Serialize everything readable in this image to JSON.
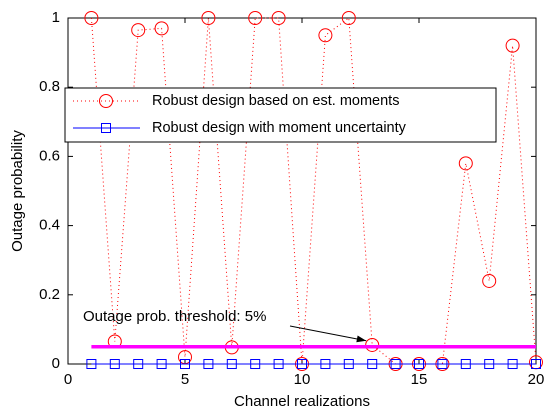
{
  "chart_data": {
    "type": "line",
    "xlabel": "Channel realizations",
    "ylabel": "Outage probability",
    "x": [
      1,
      2,
      3,
      4,
      5,
      6,
      7,
      8,
      9,
      10,
      11,
      12,
      13,
      14,
      15,
      16,
      17,
      18,
      19,
      20
    ],
    "series": [
      {
        "name": "Robust design based on est. moments",
        "color": "#ff0000",
        "line_style": "dotted",
        "marker": "circle",
        "values": [
          1.0,
          0.065,
          0.965,
          0.97,
          0.02,
          1.0,
          0.048,
          1.0,
          1.0,
          0,
          0.95,
          1.0,
          0.055,
          0,
          0,
          0,
          0.58,
          0.24,
          0.92,
          0.005
        ]
      },
      {
        "name": "Robust design with moment uncertainty",
        "color": "#0000ff",
        "line_style": "solid",
        "marker": "square",
        "values": [
          0,
          0,
          0,
          0,
          0,
          0,
          0,
          0,
          0,
          0,
          0,
          0,
          0,
          0,
          0,
          0,
          0,
          0,
          0,
          0
        ]
      }
    ],
    "reference_line": {
      "x": [
        1,
        20
      ],
      "values": [
        0.05,
        0.05
      ],
      "color": "#ff00ff"
    },
    "annotation": {
      "text": "Outage prob. threshold: 5%",
      "x": 13,
      "y": 0.05
    },
    "xlim": [
      0,
      20
    ],
    "xticks": [
      0,
      5,
      10,
      15,
      20
    ],
    "ylim": [
      0,
      1
    ],
    "yticks": [
      0,
      0.2,
      0.4,
      0.6,
      0.8,
      1
    ],
    "grid": false,
    "legend": "upper center"
  }
}
